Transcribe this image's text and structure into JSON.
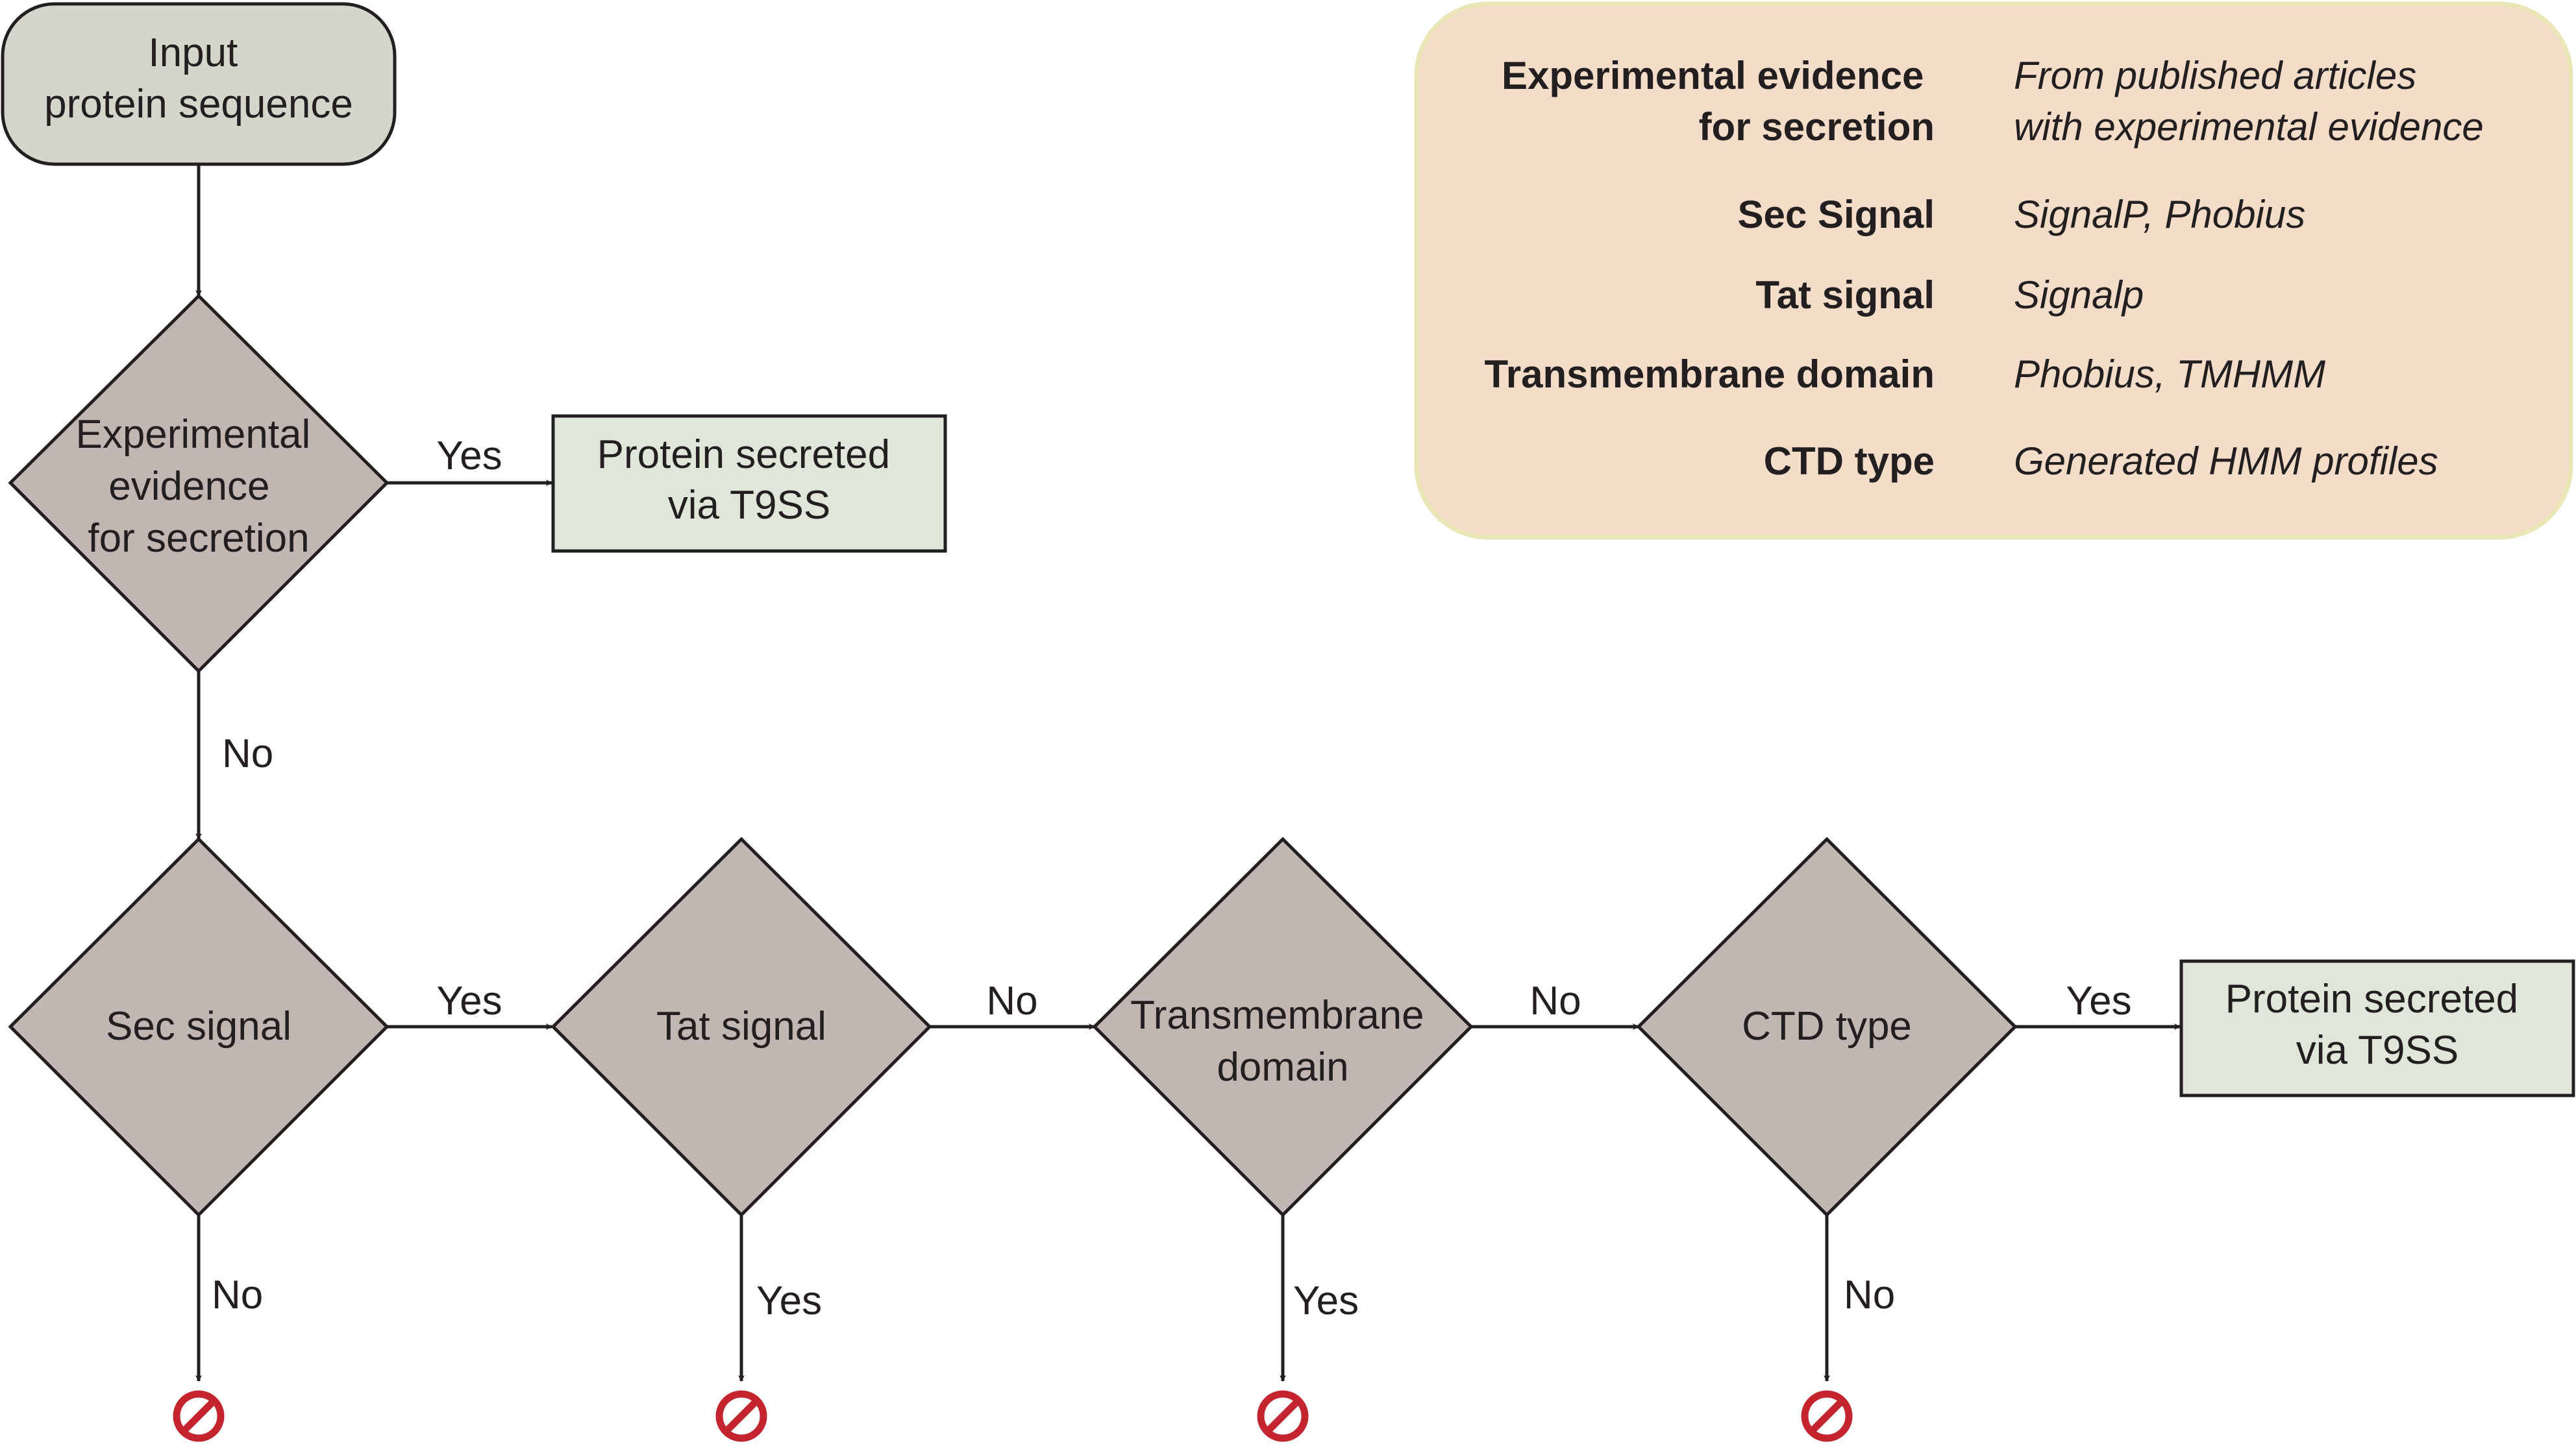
{
  "nodes": {
    "input": [
      "Input",
      "protein sequence"
    ],
    "experimental": [
      "Experimental",
      "evidence",
      "for secretion"
    ],
    "secreted_top": [
      "Protein secreted",
      "via T9SS"
    ],
    "sec_signal": [
      "Sec signal"
    ],
    "tat_signal": [
      "Tat signal"
    ],
    "transmembrane": [
      "Transmembrane",
      "domain"
    ],
    "ctd_type": [
      "CTD type"
    ],
    "secreted_bottom": [
      "Protein secreted",
      "via T9SS"
    ]
  },
  "edges": {
    "experimental_yes": "Yes",
    "experimental_no": "No",
    "sec_yes": "Yes",
    "sec_no": "No",
    "tat_no": "No",
    "tat_yes": "Yes",
    "transmembrane_no": "No",
    "transmembrane_yes": "Yes",
    "ctd_yes": "Yes",
    "ctd_no": "No"
  },
  "legend": [
    {
      "criterion": [
        "Experimental evidence",
        "for secretion"
      ],
      "method": [
        "From published articles",
        "with experimental evidence"
      ]
    },
    {
      "criterion": [
        "Sec Signal"
      ],
      "method": [
        "SignalP, Phobius"
      ]
    },
    {
      "criterion": [
        "Tat signal"
      ],
      "method": [
        "Signalp"
      ]
    },
    {
      "criterion": [
        "Transmembrane domain"
      ],
      "method": [
        "Phobius, TMHMM"
      ]
    },
    {
      "criterion": [
        "CTD type"
      ],
      "method": [
        "Generated HMM profiles"
      ]
    }
  ],
  "icons": {
    "stop": "no-entry-icon"
  },
  "colors": {
    "input_fill": "#d4d6cb",
    "decision_fill": "#c2b6b3",
    "result_fill": "#e0e6d9",
    "legend_fill": "#f3ddc8",
    "legend_border": "#eae6b8",
    "stop_red": "#c4242e",
    "line": "#231f20"
  }
}
